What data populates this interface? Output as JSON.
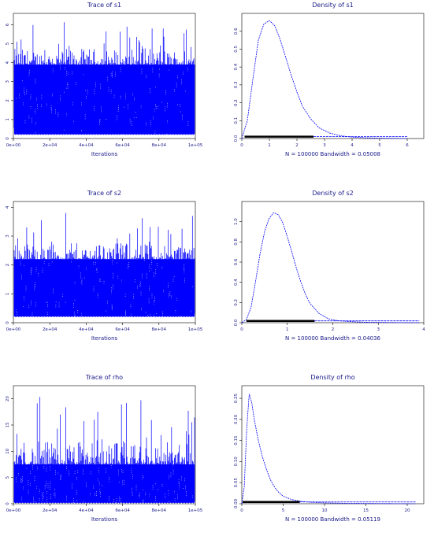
{
  "figure": {
    "panels": [
      {
        "id": "trace-s1",
        "title": "Trace of s1",
        "xlabel": "Iterations"
      },
      {
        "id": "density-s1",
        "title": "Density of s1",
        "xlabel": "N = 100000   Bandwidth = 0.05008"
      },
      {
        "id": "trace-s2",
        "title": "Trace of s2",
        "xlabel": "Iterations"
      },
      {
        "id": "density-s2",
        "title": "Density of s2",
        "xlabel": "N = 100000   Bandwidth = 0.04036"
      },
      {
        "id": "trace-rho",
        "title": "Trace of rho",
        "xlabel": "Iterations"
      },
      {
        "id": "density-rho",
        "title": "Density of rho",
        "xlabel": "N = 100000   Bandwidth = 0.05119"
      }
    ],
    "colors": {
      "series": "#0000ff",
      "rug": "#000000",
      "text": "#1a1a8a"
    }
  },
  "chart_data": [
    {
      "id": "trace-s1",
      "type": "line",
      "title": "Trace of s1",
      "xlabel": "Iterations",
      "ylabel": "",
      "xlim": [
        0,
        100000
      ],
      "ylim": [
        0,
        6.6
      ],
      "xticks": [
        "0e+00",
        "2e+04",
        "4e+04",
        "6e+04",
        "8e+04",
        "1e+05"
      ],
      "yticks": [
        "0",
        "1",
        "2",
        "3",
        "4",
        "5",
        "6"
      ],
      "band": {
        "low": 0.2,
        "high": 3.9,
        "spike_max": 6.3
      }
    },
    {
      "id": "density-s1",
      "type": "line",
      "title": "Density of s1",
      "xlabel": "N = 100000   Bandwidth = 0.05008",
      "ylabel": "",
      "xlim": [
        0,
        6.6
      ],
      "ylim": [
        0,
        0.7
      ],
      "xticks": [
        "0",
        "1",
        "2",
        "3",
        "4",
        "5",
        "6"
      ],
      "yticks": [
        "0.0",
        "0.1",
        "0.2",
        "0.3",
        "0.4",
        "0.5",
        "0.6"
      ],
      "x": [
        0,
        0.2,
        0.4,
        0.6,
        0.8,
        1.0,
        1.2,
        1.4,
        1.6,
        1.8,
        2.0,
        2.2,
        2.5,
        2.8,
        3.2,
        3.6,
        4.0,
        4.5,
        5.0,
        6.0
      ],
      "y": [
        0,
        0.1,
        0.33,
        0.55,
        0.64,
        0.66,
        0.63,
        0.55,
        0.45,
        0.35,
        0.26,
        0.18,
        0.11,
        0.06,
        0.03,
        0.015,
        0.008,
        0.004,
        0.002,
        0
      ],
      "rug": [
        0.1,
        2.6
      ]
    },
    {
      "id": "trace-s2",
      "type": "line",
      "title": "Trace of s2",
      "xlabel": "Iterations",
      "ylabel": "",
      "xlim": [
        0,
        100000
      ],
      "ylim": [
        0,
        4.2
      ],
      "xticks": [
        "0e+00",
        "2e+04",
        "4e+04",
        "6e+04",
        "8e+04",
        "1e+05"
      ],
      "yticks": [
        "0",
        "1",
        "2",
        "3",
        "4"
      ],
      "band": {
        "low": 0.2,
        "high": 2.2,
        "spike_max": 3.8
      }
    },
    {
      "id": "density-s2",
      "type": "line",
      "title": "Density of s2",
      "xlabel": "N = 100000   Bandwidth = 0.04036",
      "ylabel": "",
      "xlim": [
        0,
        4.0
      ],
      "ylim": [
        0,
        1.2
      ],
      "xticks": [
        "0",
        "1",
        "2",
        "3",
        "4"
      ],
      "yticks": [
        "0.0",
        "0.2",
        "0.4",
        "0.6",
        "0.8",
        "1.0"
      ],
      "x": [
        0,
        0.1,
        0.2,
        0.3,
        0.4,
        0.5,
        0.6,
        0.7,
        0.8,
        0.9,
        1.0,
        1.1,
        1.2,
        1.3,
        1.4,
        1.5,
        1.7,
        1.9,
        2.1,
        2.4,
        2.7,
        3.0,
        3.5,
        3.9
      ],
      "y": [
        0,
        0.03,
        0.15,
        0.4,
        0.68,
        0.9,
        1.03,
        1.09,
        1.07,
        0.99,
        0.85,
        0.7,
        0.54,
        0.4,
        0.28,
        0.19,
        0.09,
        0.04,
        0.02,
        0.01,
        0.005,
        0.003,
        0.001,
        0
      ],
      "rug": [
        0.1,
        1.6
      ]
    },
    {
      "id": "trace-rho",
      "type": "line",
      "title": "Trace of rho",
      "xlabel": "Iterations",
      "ylabel": "",
      "xlim": [
        0,
        100000
      ],
      "ylim": [
        0,
        22.5
      ],
      "xticks": [
        "0e+00",
        "2e+04",
        "4e+04",
        "6e+04",
        "8e+04",
        "1e+05"
      ],
      "yticks": [
        "0",
        "5",
        "10",
        "15",
        "20"
      ],
      "band": {
        "low": 0.1,
        "high": 7.5,
        "spike_max": 20.5
      }
    },
    {
      "id": "density-rho",
      "type": "line",
      "title": "Density of rho",
      "xlabel": "N = 100000   Bandwidth = 0.05119",
      "ylabel": "",
      "xlim": [
        0,
        22
      ],
      "ylim": [
        0,
        0.28
      ],
      "xticks": [
        "0",
        "5",
        "10",
        "15",
        "20"
      ],
      "yticks": [
        "0.00",
        "0.05",
        "0.10",
        "0.15",
        "0.20",
        "0.25"
      ],
      "x": [
        0,
        0.3,
        0.6,
        0.9,
        1.2,
        1.5,
        2.0,
        2.5,
        3.0,
        3.5,
        4.0,
        4.5,
        5.0,
        6.0,
        7.0,
        8.0,
        10.0,
        13.0,
        16.0,
        19.0,
        21.0
      ],
      "y": [
        0,
        0.04,
        0.18,
        0.26,
        0.24,
        0.2,
        0.15,
        0.11,
        0.08,
        0.055,
        0.038,
        0.026,
        0.018,
        0.01,
        0.006,
        0.004,
        0.002,
        0.001,
        0.0005,
        0.0002,
        0
      ],
      "rug": [
        0.1,
        7.0
      ]
    }
  ]
}
